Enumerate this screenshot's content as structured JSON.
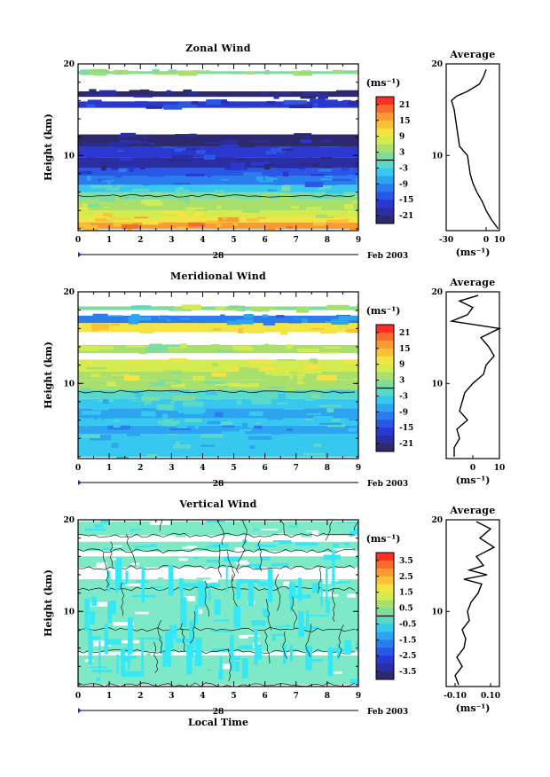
{
  "chart_data": [
    {
      "type": "heatmap",
      "title": "Zonal Wind",
      "ylabel": "Height (km)",
      "x_ticks": [
        "0",
        "1",
        "2",
        "3",
        "4",
        "5",
        "6",
        "7",
        "8",
        "9"
      ],
      "y_ticks": [
        "10",
        "20"
      ],
      "xlim": [
        0,
        9
      ],
      "ylim": [
        1.8,
        20
      ],
      "date_label": "Feb 2003",
      "day_label": "28",
      "colorbar": {
        "unit": "(ms⁻¹)",
        "ticks": [
          "21",
          "15",
          "9",
          "3",
          "-3",
          "-9",
          "-15",
          "-21"
        ],
        "colors": [
          "#fc2e26",
          "#fb6a2c",
          "#fb9a33",
          "#fbc136",
          "#f3e443",
          "#d3eb4f",
          "#a8e06b",
          "#7edd9c",
          "#5ad8c8",
          "#36c8ee",
          "#2ca4ef",
          "#2b7ced",
          "#2957e6",
          "#2b38cf",
          "#2b2ea2",
          "#2c2a6c"
        ]
      },
      "rows": [
        {
          "alt": [
            2.0,
            2.7
          ],
          "val": 16
        },
        {
          "alt": [
            2.7,
            3.3
          ],
          "val": 12
        },
        {
          "alt": [
            3.3,
            4.0
          ],
          "val": 9
        },
        {
          "alt": [
            4.0,
            5.2
          ],
          "val": 6
        },
        {
          "alt": [
            5.2,
            6.0
          ],
          "val": 3
        },
        {
          "alt": [
            6.0,
            6.8
          ],
          "val": -3
        },
        {
          "alt": [
            6.8,
            7.8
          ],
          "val": -10
        },
        {
          "alt": [
            7.8,
            8.6
          ],
          "val": -14
        },
        {
          "alt": [
            8.6,
            9.8
          ],
          "val": -20
        },
        {
          "alt": [
            9.8,
            11.0
          ],
          "val": -16
        },
        {
          "alt": [
            11.0,
            12.3
          ],
          "val": -21
        },
        {
          "alt": [
            15.2,
            15.9
          ],
          "val": -16
        },
        {
          "alt": [
            16.4,
            17.0
          ],
          "val": -21
        },
        {
          "alt": [
            18.9,
            19.2
          ],
          "val": 3
        }
      ],
      "side_plot": {
        "title": "Average",
        "xlabel": "(ms⁻¹)",
        "xlim": [
          -30,
          10
        ],
        "x_ticks": [
          "-30",
          "0",
          "10"
        ],
        "y_ticks": [
          "10",
          "20"
        ],
        "profile": [
          [
            2,
            9
          ],
          [
            3,
            4
          ],
          [
            4,
            0
          ],
          [
            5,
            -3
          ],
          [
            6,
            -7
          ],
          [
            7,
            -10
          ],
          [
            8,
            -12
          ],
          [
            9,
            -13
          ],
          [
            10,
            -14
          ],
          [
            11,
            -20
          ],
          [
            12,
            -21
          ],
          [
            13,
            -22
          ],
          [
            14,
            -23
          ],
          [
            15,
            -24
          ],
          [
            16,
            -26
          ],
          [
            16.5,
            -22
          ],
          [
            17,
            -14
          ],
          [
            17.8,
            -5
          ],
          [
            18.6,
            -2
          ],
          [
            19.4,
            0
          ]
        ]
      }
    },
    {
      "type": "heatmap",
      "title": "Meridional Wind",
      "ylabel": "Height (km)",
      "x_ticks": [
        "0",
        "1",
        "2",
        "3",
        "4",
        "5",
        "6",
        "7",
        "8",
        "9"
      ],
      "y_ticks": [
        "10",
        "20"
      ],
      "xlim": [
        0,
        9
      ],
      "ylim": [
        1.8,
        20
      ],
      "date_label": "Feb 2003",
      "day_label": "28",
      "colorbar": {
        "unit": "(ms⁻¹)",
        "ticks": [
          "21",
          "15",
          "9",
          "3",
          "-3",
          "-9",
          "-15",
          "-21"
        ],
        "colors": [
          "#fc2e26",
          "#fb6a2c",
          "#fb9a33",
          "#fbc136",
          "#f3e443",
          "#d3eb4f",
          "#a8e06b",
          "#7edd9c",
          "#5ad8c8",
          "#36c8ee",
          "#2ca4ef",
          "#2b7ced",
          "#2957e6",
          "#2b38cf",
          "#2b2ea2",
          "#2c2a6c"
        ]
      },
      "rows": [
        {
          "alt": [
            2.0,
            4.5
          ],
          "val": -4
        },
        {
          "alt": [
            4.5,
            5.4
          ],
          "val": -7
        },
        {
          "alt": [
            5.4,
            6.2
          ],
          "val": -4
        },
        {
          "alt": [
            6.2,
            7.3
          ],
          "val": -6
        },
        {
          "alt": [
            7.3,
            8.3
          ],
          "val": -3
        },
        {
          "alt": [
            8.3,
            9.3
          ],
          "val": -2
        },
        {
          "alt": [
            9.3,
            10.4
          ],
          "val": 4
        },
        {
          "alt": [
            10.4,
            11.3
          ],
          "val": 6
        },
        {
          "alt": [
            11.3,
            12.6
          ],
          "val": 8
        },
        {
          "alt": [
            13.3,
            14.2
          ],
          "val": 5
        },
        {
          "alt": [
            15.6,
            16.6
          ],
          "val": 11
        },
        {
          "alt": [
            16.6,
            17.4
          ],
          "val": -9
        },
        {
          "alt": [
            18.0,
            18.4
          ],
          "val": 3
        }
      ],
      "side_plot": {
        "title": "Average",
        "xlabel": "(ms⁻¹)",
        "xlim": [
          -10,
          10
        ],
        "x_ticks": [
          "0",
          "10"
        ],
        "y_ticks": [
          "10",
          "20"
        ],
        "profile": [
          [
            2,
            -7
          ],
          [
            3,
            -7
          ],
          [
            4,
            -5
          ],
          [
            5,
            -6
          ],
          [
            6,
            -2
          ],
          [
            7,
            -5
          ],
          [
            8,
            -4
          ],
          [
            9,
            -3
          ],
          [
            10,
            0
          ],
          [
            11,
            4
          ],
          [
            12,
            5
          ],
          [
            13,
            8
          ],
          [
            14,
            6
          ],
          [
            15,
            3
          ],
          [
            16,
            10
          ],
          [
            16.8,
            -8
          ],
          [
            17.5,
            -2
          ],
          [
            18.3,
            0
          ],
          [
            19,
            -5
          ],
          [
            19.6,
            2
          ]
        ]
      }
    },
    {
      "type": "heatmap",
      "title": "Vertical Wind",
      "ylabel": "Height (km)",
      "xlabel": "Local Time",
      "x_ticks": [
        "0",
        "1",
        "2",
        "3",
        "4",
        "5",
        "6",
        "7",
        "8",
        "9"
      ],
      "y_ticks": [
        "10",
        "20"
      ],
      "xlim": [
        0,
        9
      ],
      "ylim": [
        1.8,
        20
      ],
      "date_label": "Feb 2003",
      "day_label": "28",
      "colorbar": {
        "unit": "(ms⁻¹)",
        "ticks": [
          "3.5",
          "2.5",
          "1.5",
          "0.5",
          "-0.5",
          "-1.5",
          "-2.5",
          "-3.5"
        ],
        "colors": [
          "#fc2e26",
          "#fb6a2c",
          "#fb9a33",
          "#fbc136",
          "#f3e443",
          "#d3eb4f",
          "#a8e06b",
          "#7edd9c",
          "#5ad8c8",
          "#36c8ee",
          "#2ca4ef",
          "#2b7ced",
          "#2957e6",
          "#2b38cf",
          "#2b2ea2",
          "#2c2a6c"
        ]
      },
      "rows": [
        {
          "alt": [
            2.0,
            5.2
          ],
          "val": 0.1
        },
        {
          "alt": [
            5.6,
            8.0
          ],
          "val": 0.1
        },
        {
          "alt": [
            8.0,
            12.5
          ],
          "val": 0.1
        },
        {
          "alt": [
            12.5,
            13.5
          ],
          "val": 0.1
        },
        {
          "alt": [
            14.8,
            16.0
          ],
          "val": 0.1
        },
        {
          "alt": [
            16.6,
            17.6
          ],
          "val": 0.1
        },
        {
          "alt": [
            18.3,
            19.8
          ],
          "val": 0.1
        }
      ],
      "side_plot": {
        "title": "Average",
        "xlabel": "(ms⁻¹)",
        "xlim": [
          -0.15,
          0.15
        ],
        "x_ticks": [
          "-0.10",
          "0.10"
        ],
        "y_ticks": [
          "10",
          "20"
        ],
        "profile": [
          [
            2,
            -0.08
          ],
          [
            3,
            -0.1
          ],
          [
            4,
            -0.06
          ],
          [
            5,
            -0.09
          ],
          [
            6,
            -0.05
          ],
          [
            7,
            -0.04
          ],
          [
            8,
            -0.06
          ],
          [
            9,
            -0.02
          ],
          [
            10,
            -0.03
          ],
          [
            11,
            -0.01
          ],
          [
            12,
            0.03
          ],
          [
            13,
            0.05
          ],
          [
            13.5,
            -0.05
          ],
          [
            14,
            0.08
          ],
          [
            14.5,
            -0.02
          ],
          [
            15,
            0.06
          ],
          [
            16,
            0.02
          ],
          [
            17,
            0.12
          ],
          [
            18,
            0.04
          ],
          [
            19,
            0.1
          ],
          [
            19.8,
            0.02
          ]
        ]
      }
    }
  ]
}
